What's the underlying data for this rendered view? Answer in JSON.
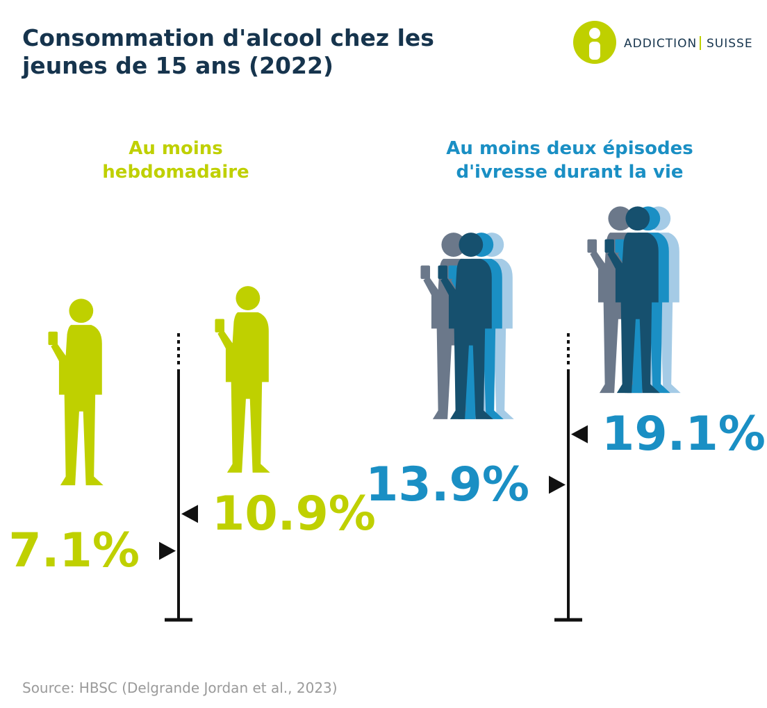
{
  "header": {
    "logo_left": "ADDICTION",
    "logo_right": "SUISSE"
  },
  "chart_data": {
    "type": "marker",
    "title": "Consommation d'alcool chez les jeunes de 15 ans (2022)",
    "series": [
      {
        "name": "Au moins hebdomadaire",
        "color": "#bfd000",
        "values": [
          7.1,
          10.9
        ],
        "value_labels": [
          "7.1%",
          "10.9%"
        ]
      },
      {
        "name": "Au moins deux épisodes d'ivresse durant la vie",
        "color": "#1a8fc4",
        "values": [
          13.9,
          19.1
        ],
        "value_labels": [
          "13.9%",
          "19.1%"
        ]
      }
    ]
  },
  "source": "Source: HBSC (Delgrande Jordan et al., 2023)"
}
